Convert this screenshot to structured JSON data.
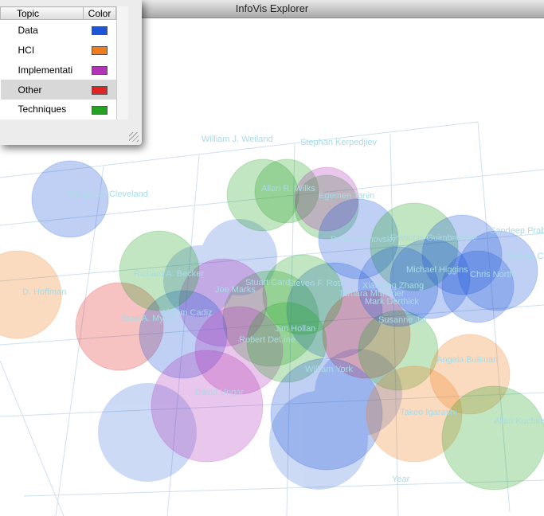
{
  "window": {
    "title": "InfoVis Explorer"
  },
  "legend": {
    "columns": [
      "Topic",
      "Color"
    ],
    "rows": [
      {
        "topic": "Data",
        "color": "#1d55d6"
      },
      {
        "topic": "HCI",
        "color": "#f07d1c"
      },
      {
        "topic": "Implementati",
        "color": "#b033b8"
      },
      {
        "topic": "Other",
        "color": "#e02323"
      },
      {
        "topic": "Techniques",
        "color": "#23a223"
      }
    ],
    "selected": 3
  },
  "nodes": [
    {
      "label": "William J. Weiland",
      "topic": 4
    },
    {
      "label": "Stephan Kerpedjiev",
      "topic": 4
    },
    {
      "label": "William S. Cleveland",
      "topic": 0
    },
    {
      "label": "Allan R. Wilks",
      "topic": 4
    },
    {
      "label": "Egemen Tanin",
      "topic": 2
    },
    {
      "label": "Peter Wisnovsky",
      "topic": 0
    },
    {
      "label": "Francois Guimbretiere",
      "topic": 4
    },
    {
      "label": "Sandeep Prabhakar",
      "topic": 0
    },
    {
      "label": "Nathan Conklin",
      "topic": 0
    },
    {
      "label": "Chris North",
      "topic": 0
    },
    {
      "label": "D. Hoffman",
      "topic": 1
    },
    {
      "label": "Stuart Card",
      "topic": 4
    },
    {
      "label": "Tamara Munzner",
      "topic": 0
    },
    {
      "label": "Mark Derthick",
      "topic": 3
    },
    {
      "label": "Susanne Jul",
      "topic": 4
    },
    {
      "label": "Xiaolong Zhang",
      "topic": 0
    },
    {
      "label": "Michael Higgins",
      "topic": 0
    },
    {
      "label": "Steven F. Roth",
      "topic": 4
    },
    {
      "label": "Joe Marks",
      "topic": 2
    },
    {
      "label": "Brad A. Myers",
      "topic": 3
    },
    {
      "label": "William Cadiz",
      "topic": 0
    },
    {
      "label": "Robert DeLine",
      "topic": 2
    },
    {
      "label": "Jim Hollan",
      "topic": 4
    },
    {
      "label": "William York",
      "topic": 0
    },
    {
      "label": "David Ungar",
      "topic": 2
    },
    {
      "label": "Angela Bullman",
      "topic": 1
    },
    {
      "label": "Takeo Igarashi",
      "topic": 1
    },
    {
      "label": "Allan Kuchinsky",
      "topic": 4
    },
    {
      "label": "Richard A. Becker",
      "topic": 4
    }
  ],
  "axis_label": "Year"
}
